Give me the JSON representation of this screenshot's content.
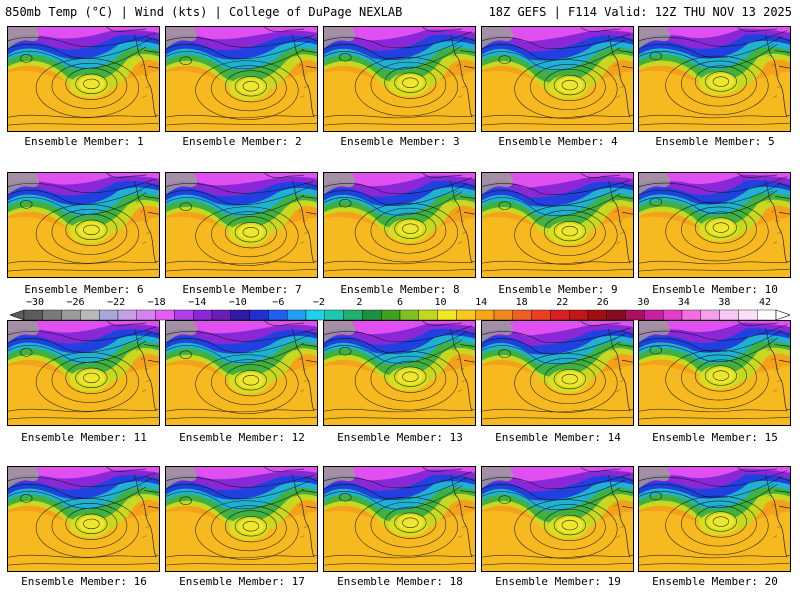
{
  "header": {
    "left_title": "850mb Temp (°C) | Wind (kts) | College of DuPage NEXLAB",
    "right_title": "18Z GEFS | F114 Valid: 12Z THU NOV 13 2025"
  },
  "panel_label_prefix": "Ensemble Member: ",
  "members": [
    1,
    2,
    3,
    4,
    5,
    6,
    7,
    8,
    9,
    10,
    11,
    12,
    13,
    14,
    15,
    16,
    17,
    18,
    19,
    20
  ],
  "colorbar": {
    "tick_labels": [
      "−30",
      "−26",
      "−22",
      "−18",
      "−14",
      "−10",
      "−6",
      "−2",
      "2",
      "6",
      "10",
      "14",
      "18",
      "22",
      "26",
      "30",
      "34",
      "38",
      "42"
    ],
    "colors": [
      "#5c5c5c",
      "#7a7a7a",
      "#9a9a9a",
      "#b8b8b8",
      "#a8a8d8",
      "#c8a0e8",
      "#d882f0",
      "#e05ef0",
      "#b040e8",
      "#8a28d8",
      "#6a1eb8",
      "#3018a8",
      "#2030d0",
      "#2060f0",
      "#20a0f0",
      "#20d0e8",
      "#20c8b0",
      "#20b070",
      "#209040",
      "#40a020",
      "#80c020",
      "#c0d820",
      "#f0e820",
      "#f8c820",
      "#f4a818",
      "#f08820",
      "#ec6020",
      "#e84020",
      "#d82020",
      "#c01818",
      "#a01010",
      "#880c20",
      "#a81060",
      "#c820a0",
      "#e040c8",
      "#f070e0",
      "#f4a0ec",
      "#f8c8f4",
      "#fce0f8",
      "#ffffff"
    ]
  }
}
